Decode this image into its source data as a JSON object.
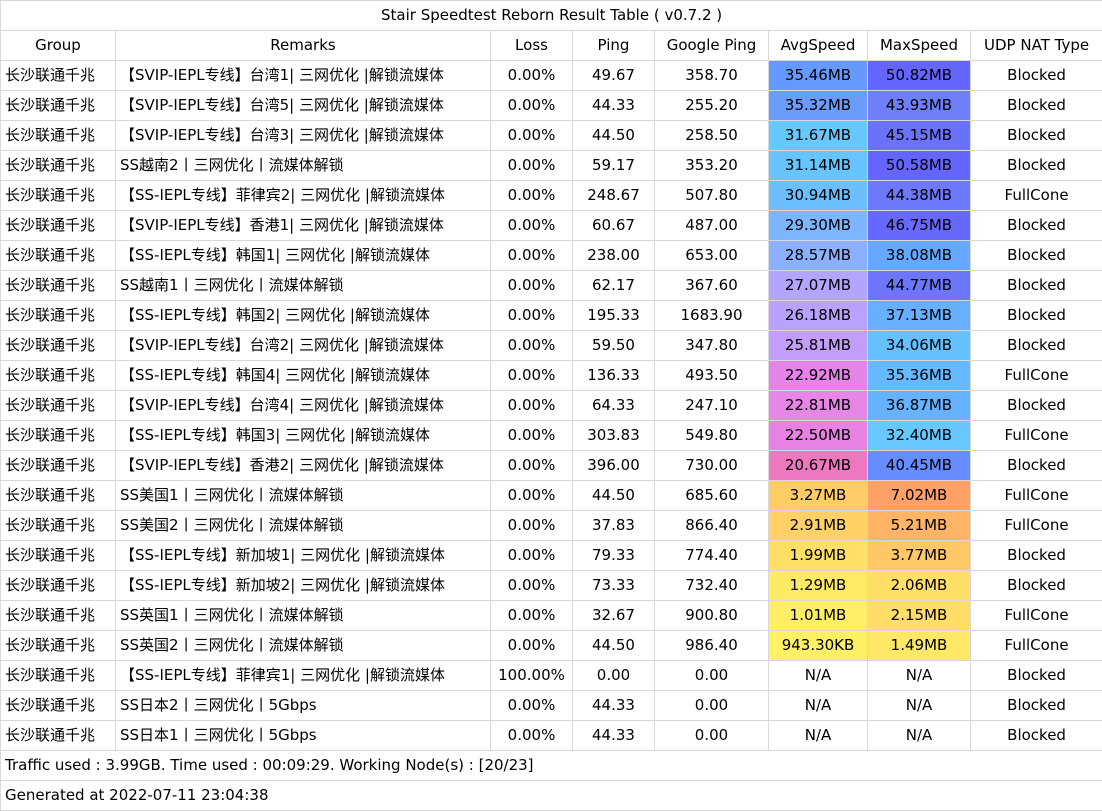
{
  "title": "Stair Speedtest Reborn Result Table ( v0.7.2 )",
  "columns": [
    "Group",
    "Remarks",
    "Loss",
    "Ping",
    "Google Ping",
    "AvgSpeed",
    "MaxSpeed",
    "UDP NAT Type"
  ],
  "rows": [
    {
      "group": "长沙联通千兆",
      "remarks": "【SVIP-IEPL专线】台湾1| 三网优化 |解锁流媒体",
      "loss": "0.00%",
      "ping": "49.67",
      "gping": "358.70",
      "avg": "35.46MB",
      "max": "50.82MB",
      "nat": "Blocked",
      "avg_color": "#6699ff",
      "max_color": "#6464ff"
    },
    {
      "group": "长沙联通千兆",
      "remarks": "【SVIP-IEPL专线】台湾5| 三网优化 |解锁流媒体",
      "loss": "0.00%",
      "ping": "44.33",
      "gping": "255.20",
      "avg": "35.32MB",
      "max": "43.93MB",
      "nat": "Blocked",
      "avg_color": "#6b9cfb",
      "max_color": "#6f7ef9"
    },
    {
      "group": "长沙联通千兆",
      "remarks": "【SVIP-IEPL专线】台湾3| 三网优化 |解锁流媒体",
      "loss": "0.00%",
      "ping": "44.50",
      "gping": "258.50",
      "avg": "31.67MB",
      "max": "45.15MB",
      "nat": "Blocked",
      "avg_color": "#66c8ff",
      "max_color": "#6a72fc"
    },
    {
      "group": "长沙联通千兆",
      "remarks": "SS越南2丨三网优化丨流媒体解锁",
      "loss": "0.00%",
      "ping": "59.17",
      "gping": "353.20",
      "avg": "31.14MB",
      "max": "50.58MB",
      "nat": "Blocked",
      "avg_color": "#66c4ff",
      "max_color": "#6464ff"
    },
    {
      "group": "长沙联通千兆",
      "remarks": "【SS-IEPL专线】菲律宾2| 三网优化 |解锁流媒体",
      "loss": "0.00%",
      "ping": "248.67",
      "gping": "507.80",
      "avg": "30.94MB",
      "max": "44.38MB",
      "nat": "FullCone",
      "avg_color": "#6cbfff",
      "max_color": "#6d78fa"
    },
    {
      "group": "长沙联通千兆",
      "remarks": "【SVIP-IEPL专线】香港1| 三网优化 |解锁流媒体",
      "loss": "0.00%",
      "ping": "60.67",
      "gping": "487.00",
      "avg": "29.30MB",
      "max": "46.75MB",
      "nat": "Blocked",
      "avg_color": "#7db6ff",
      "max_color": "#6868fe"
    },
    {
      "group": "长沙联通千兆",
      "remarks": "【SS-IEPL专线】韩国1| 三网优化 |解锁流媒体",
      "loss": "0.00%",
      "ping": "238.00",
      "gping": "653.00",
      "avg": "28.57MB",
      "max": "38.08MB",
      "nat": "Blocked",
      "avg_color": "#8ab0ff",
      "max_color": "#66a8ff"
    },
    {
      "group": "长沙联通千兆",
      "remarks": "SS越南1丨三网优化丨流媒体解锁",
      "loss": "0.00%",
      "ping": "62.17",
      "gping": "367.60",
      "avg": "27.07MB",
      "max": "44.77MB",
      "nat": "Blocked",
      "avg_color": "#b2a4ff",
      "max_color": "#6b76fb"
    },
    {
      "group": "长沙联通千兆",
      "remarks": "【SS-IEPL专线】韩国2| 三网优化 |解锁流媒体",
      "loss": "0.00%",
      "ping": "195.33",
      "gping": "1683.90",
      "avg": "26.18MB",
      "max": "37.13MB",
      "nat": "Blocked",
      "avg_color": "#b9a1ff",
      "max_color": "#66b0ff"
    },
    {
      "group": "长沙联通千兆",
      "remarks": "【SVIP-IEPL专线】台湾2| 三网优化 |解锁流媒体",
      "loss": "0.00%",
      "ping": "59.50",
      "gping": "347.80",
      "avg": "25.81MB",
      "max": "34.06MB",
      "nat": "Blocked",
      "avg_color": "#c29dfa",
      "max_color": "#66c0ff"
    },
    {
      "group": "长沙联通千兆",
      "remarks": "【SS-IEPL专线】韩国4| 三网优化 |解锁流媒体",
      "loss": "0.00%",
      "ping": "136.33",
      "gping": "493.50",
      "avg": "22.92MB",
      "max": "35.36MB",
      "nat": "FullCone",
      "avg_color": "#e484e8",
      "max_color": "#66b8ff"
    },
    {
      "group": "长沙联通千兆",
      "remarks": "【SVIP-IEPL专线】台湾4| 三网优化 |解锁流媒体",
      "loss": "0.00%",
      "ping": "64.33",
      "gping": "247.10",
      "avg": "22.81MB",
      "max": "36.87MB",
      "nat": "Blocked",
      "avg_color": "#e686e6",
      "max_color": "#66b2ff"
    },
    {
      "group": "长沙联通千兆",
      "remarks": "【SS-IEPL专线】韩国3| 三网优化 |解锁流媒体",
      "loss": "0.00%",
      "ping": "303.83",
      "gping": "549.80",
      "avg": "22.50MB",
      "max": "32.40MB",
      "nat": "FullCone",
      "avg_color": "#e682e3",
      "max_color": "#66c8ff"
    },
    {
      "group": "长沙联通千兆",
      "remarks": "【SVIP-IEPL专线】香港2| 三网优化 |解锁流媒体",
      "loss": "0.00%",
      "ping": "396.00",
      "gping": "730.00",
      "avg": "20.67MB",
      "max": "40.45MB",
      "nat": "Blocked",
      "avg_color": "#ee78c0",
      "max_color": "#668cff"
    },
    {
      "group": "长沙联通千兆",
      "remarks": "SS美国1丨三网优化丨流媒体解锁",
      "loss": "0.00%",
      "ping": "44.50",
      "gping": "685.60",
      "avg": "3.27MB",
      "max": "7.02MB",
      "nat": "FullCone",
      "avg_color": "#ffcc66",
      "max_color": "#ffa066"
    },
    {
      "group": "长沙联通千兆",
      "remarks": "SS美国2丨三网优化丨流媒体解锁",
      "loss": "0.00%",
      "ping": "37.83",
      "gping": "866.40",
      "avg": "2.91MB",
      "max": "5.21MB",
      "nat": "FullCone",
      "avg_color": "#ffd166",
      "max_color": "#ffb466"
    },
    {
      "group": "长沙联通千兆",
      "remarks": "【SS-IEPL专线】新加坡1| 三网优化 |解锁流媒体",
      "loss": "0.00%",
      "ping": "79.33",
      "gping": "774.40",
      "avg": "1.99MB",
      "max": "3.77MB",
      "nat": "Blocked",
      "avg_color": "#ffdf66",
      "max_color": "#ffc866"
    },
    {
      "group": "长沙联通千兆",
      "remarks": "【SS-IEPL专线】新加坡2| 三网优化 |解锁流媒体",
      "loss": "0.00%",
      "ping": "73.33",
      "gping": "732.40",
      "avg": "1.29MB",
      "max": "2.06MB",
      "nat": "Blocked",
      "avg_color": "#ffea66",
      "max_color": "#ffdf66"
    },
    {
      "group": "长沙联通千兆",
      "remarks": "SS英国1丨三网优化丨流媒体解锁",
      "loss": "0.00%",
      "ping": "32.67",
      "gping": "900.80",
      "avg": "1.01MB",
      "max": "2.15MB",
      "nat": "FullCone",
      "avg_color": "#ffee66",
      "max_color": "#ffdd66"
    },
    {
      "group": "长沙联通千兆",
      "remarks": "SS英国2丨三网优化丨流媒体解锁",
      "loss": "0.00%",
      "ping": "44.50",
      "gping": "986.40",
      "avg": "943.30KB",
      "max": "1.49MB",
      "nat": "FullCone",
      "avg_color": "#fff066",
      "max_color": "#ffe866"
    },
    {
      "group": "长沙联通千兆",
      "remarks": "【SS-IEPL专线】菲律宾1| 三网优化 |解锁流媒体",
      "loss": "100.00%",
      "ping": "0.00",
      "gping": "0.00",
      "avg": "N/A",
      "max": "N/A",
      "nat": "Blocked",
      "avg_color": "#ffffff",
      "max_color": "#ffffff"
    },
    {
      "group": "长沙联通千兆",
      "remarks": "SS日本2丨三网优化丨5Gbps",
      "loss": "0.00%",
      "ping": "44.33",
      "gping": "0.00",
      "avg": "N/A",
      "max": "N/A",
      "nat": "Blocked",
      "avg_color": "#ffffff",
      "max_color": "#ffffff"
    },
    {
      "group": "长沙联通千兆",
      "remarks": "SS日本1丨三网优化丨5Gbps",
      "loss": "0.00%",
      "ping": "44.33",
      "gping": "0.00",
      "avg": "N/A",
      "max": "N/A",
      "nat": "Blocked",
      "avg_color": "#ffffff",
      "max_color": "#ffffff"
    }
  ],
  "footer": {
    "traffic": "Traffic used : 3.99GB. Time used : 00:09:29. Working Node(s) : [20/23]",
    "generated": "Generated at 2022-07-11 23:04:38"
  }
}
